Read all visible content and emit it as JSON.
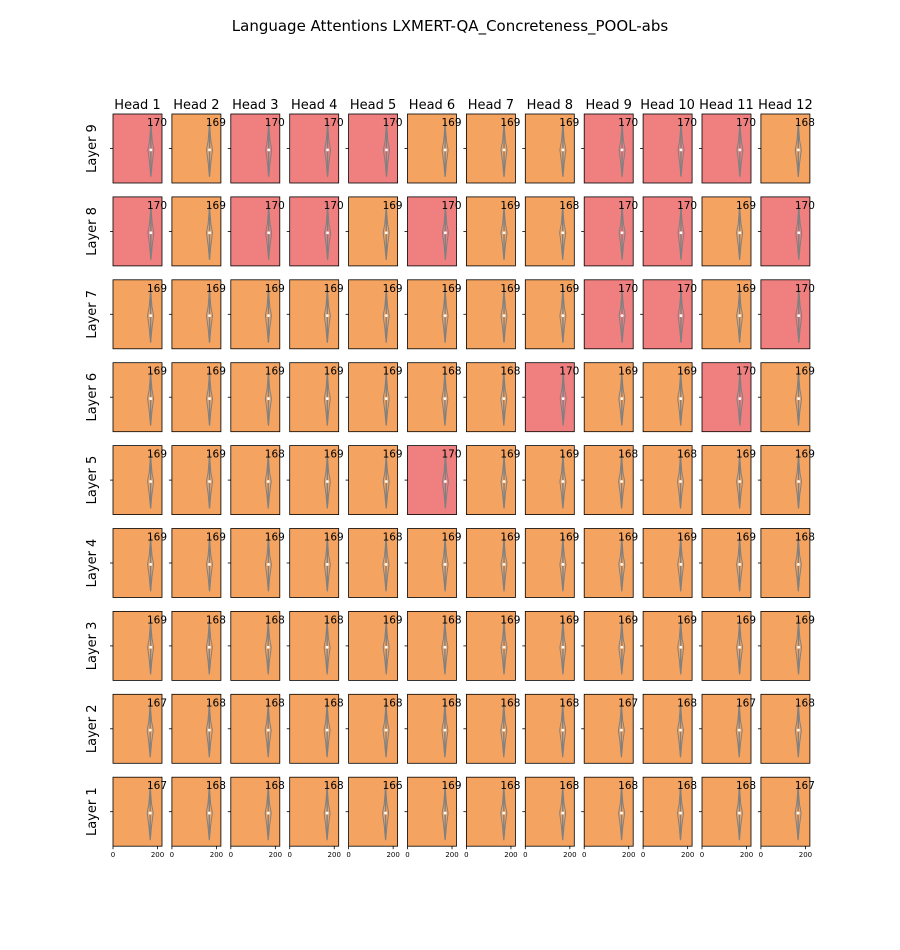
{
  "chart_data": {
    "type": "violin-grid",
    "title": "Language Attentions LXMERT-QA_Concreteness_POOL-abs",
    "column_labels": [
      "Head 1",
      "Head 2",
      "Head 3",
      "Head 4",
      "Head 5",
      "Head 6",
      "Head 7",
      "Head 8",
      "Head 9",
      "Head 10",
      "Head 11",
      "Head 12"
    ],
    "row_labels": [
      "Layer 9",
      "Layer 8",
      "Layer 7",
      "Layer 6",
      "Layer 5",
      "Layer 4",
      "Layer 3",
      "Layer 2",
      "Layer 1"
    ],
    "x_ticks": [
      "0",
      "200"
    ],
    "xlim": [
      0,
      220
    ],
    "colors": {
      "highlight": "#f08080",
      "normal": "#f4a460",
      "violin": "#808080",
      "frame": "#000000"
    },
    "highlight_threshold": 170,
    "values": [
      [
        170,
        169,
        170,
        170,
        170,
        169,
        169,
        169,
        170,
        170,
        170,
        168
      ],
      [
        170,
        169,
        170,
        170,
        169,
        170,
        169,
        168,
        170,
        170,
        169,
        170
      ],
      [
        169,
        169,
        169,
        169,
        169,
        169,
        169,
        169,
        170,
        170,
        169,
        170
      ],
      [
        169,
        169,
        169,
        169,
        169,
        168,
        168,
        170,
        169,
        169,
        170,
        169
      ],
      [
        169,
        169,
        168,
        169,
        169,
        170,
        169,
        169,
        168,
        168,
        169,
        169
      ],
      [
        169,
        169,
        169,
        169,
        168,
        169,
        169,
        169,
        169,
        169,
        169,
        168
      ],
      [
        169,
        168,
        168,
        168,
        169,
        168,
        169,
        169,
        169,
        169,
        169,
        169
      ],
      [
        167,
        168,
        168,
        168,
        168,
        168,
        168,
        168,
        167,
        168,
        167,
        168
      ],
      [
        167,
        168,
        168,
        168,
        166,
        169,
        168,
        168,
        168,
        168,
        168,
        167
      ]
    ]
  }
}
